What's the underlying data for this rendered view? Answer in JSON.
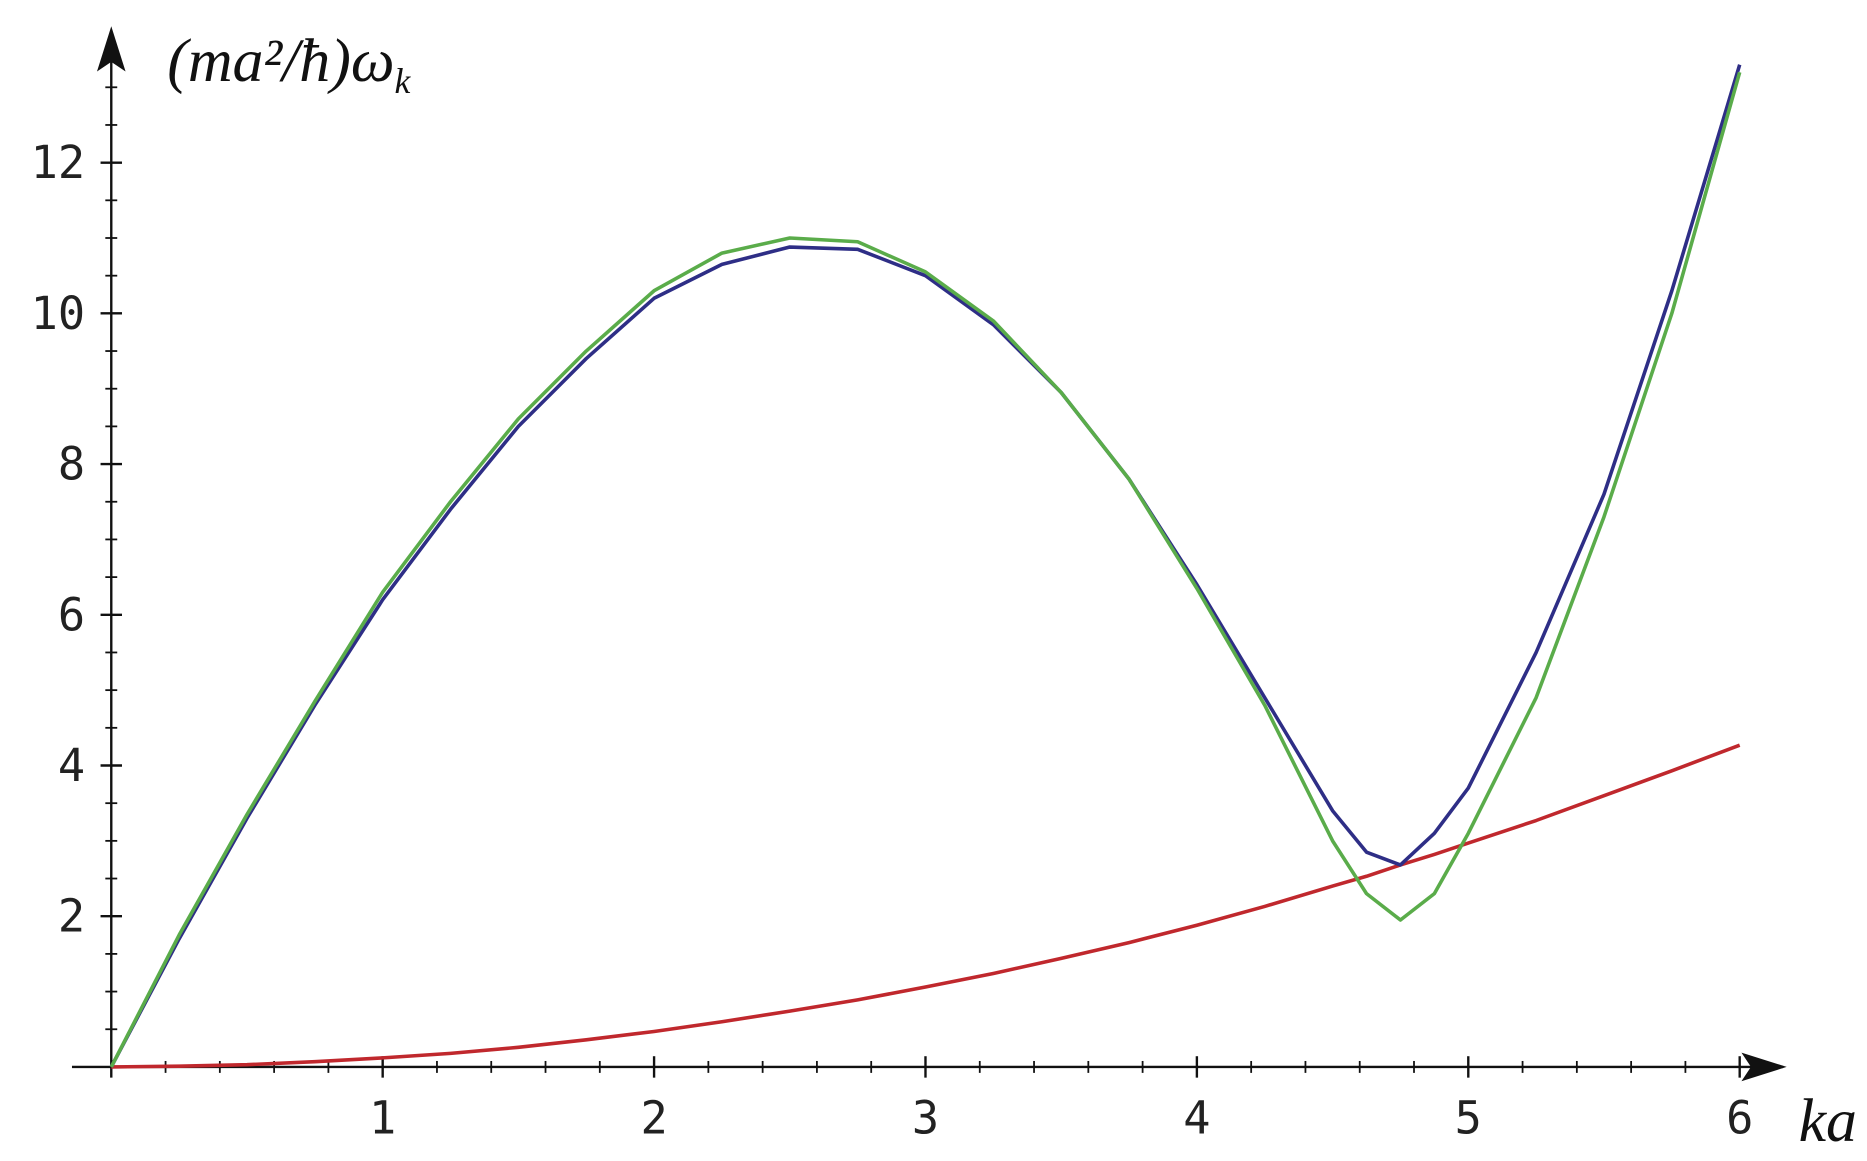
{
  "chart_data": {
    "type": "line",
    "ylabel": {
      "main": "(ma²/ħ)ω",
      "sub": "k"
    },
    "xlabel": "ka",
    "xlim": [
      0,
      6.16
    ],
    "ylim": [
      0,
      13.7
    ],
    "xticks": [
      1,
      2,
      3,
      4,
      5,
      6
    ],
    "yticks": [
      2,
      4,
      6,
      8,
      10,
      12
    ],
    "xminorticks": [
      0.2,
      0.4,
      0.6,
      0.8,
      1.2,
      1.4,
      1.6,
      1.8,
      2.2,
      2.4,
      2.6,
      2.8,
      3.2,
      3.4,
      3.6,
      3.8,
      4.2,
      4.4,
      4.6,
      4.8,
      5.2,
      5.4,
      5.6,
      5.8
    ],
    "yminorticks": [
      0.5,
      1,
      1.5,
      2.5,
      3,
      3.5,
      4.5,
      5,
      5.5,
      6.5,
      7,
      7.5,
      8.5,
      9,
      9.5,
      10.5,
      11,
      11.5,
      12.5,
      13
    ],
    "x": [
      0,
      0.25,
      0.5,
      0.75,
      1,
      1.25,
      1.5,
      1.75,
      2,
      2.25,
      2.5,
      2.75,
      3,
      3.25,
      3.5,
      3.75,
      4,
      4.25,
      4.5,
      4.625,
      4.75,
      4.875,
      5,
      5.25,
      5.5,
      5.75,
      6
    ],
    "series": [
      {
        "color": "#2e2e86",
        "values": [
          0,
          1.7,
          3.3,
          4.8,
          6.2,
          7.4,
          8.5,
          9.4,
          10.2,
          10.65,
          10.88,
          10.85,
          10.5,
          9.85,
          8.95,
          7.8,
          6.4,
          4.9,
          3.4,
          2.85,
          2.68,
          3.1,
          3.7,
          5.5,
          7.6,
          10.3,
          13.3
        ]
      },
      {
        "color": "#5aac4a",
        "values": [
          0,
          1.75,
          3.35,
          4.85,
          6.3,
          7.5,
          8.6,
          9.5,
          10.3,
          10.8,
          11.0,
          10.95,
          10.55,
          9.9,
          8.95,
          7.8,
          6.35,
          4.8,
          3.0,
          2.3,
          1.95,
          2.3,
          3.1,
          4.9,
          7.3,
          10.0,
          13.2
        ]
      },
      {
        "color": "#c0282d",
        "values": [
          0,
          0.01,
          0.03,
          0.07,
          0.12,
          0.18,
          0.26,
          0.36,
          0.47,
          0.6,
          0.74,
          0.89,
          1.06,
          1.24,
          1.44,
          1.65,
          1.88,
          2.13,
          2.4,
          2.53,
          2.68,
          2.82,
          2.97,
          3.27,
          3.6,
          3.93,
          4.27
        ]
      }
    ]
  }
}
